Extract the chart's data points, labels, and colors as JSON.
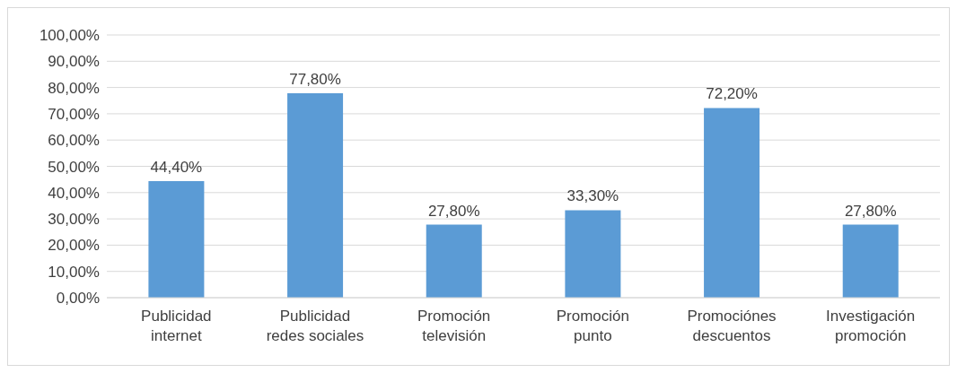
{
  "chart_data": {
    "type": "bar",
    "categories": [
      "Publicidad internet",
      "Publicidad redes sociales",
      "Promoción televisión",
      "Promoción punto",
      "Promociónes descuentos",
      "Investigación promoción"
    ],
    "values": [
      44.4,
      77.8,
      27.8,
      33.3,
      72.2,
      27.8
    ],
    "value_labels": [
      "44,40%",
      "77,80%",
      "27,80%",
      "33,30%",
      "72,20%",
      "27,80%"
    ],
    "color": "#5b9bd5",
    "ylim": [
      0,
      100
    ],
    "yticks": [
      {
        "value": 0,
        "label": "0,00%"
      },
      {
        "value": 10,
        "label": "10,00%"
      },
      {
        "value": 20,
        "label": "20,00%"
      },
      {
        "value": 30,
        "label": "30,00%"
      },
      {
        "value": 40,
        "label": "40,00%"
      },
      {
        "value": 50,
        "label": "50,00%"
      },
      {
        "value": 60,
        "label": "60,00%"
      },
      {
        "value": 70,
        "label": "70,00%"
      },
      {
        "value": 80,
        "label": "80,00%"
      },
      {
        "value": 90,
        "label": "90,00%"
      },
      {
        "value": 100,
        "label": "100,00%"
      }
    ],
    "grid": "y",
    "legend": false
  }
}
